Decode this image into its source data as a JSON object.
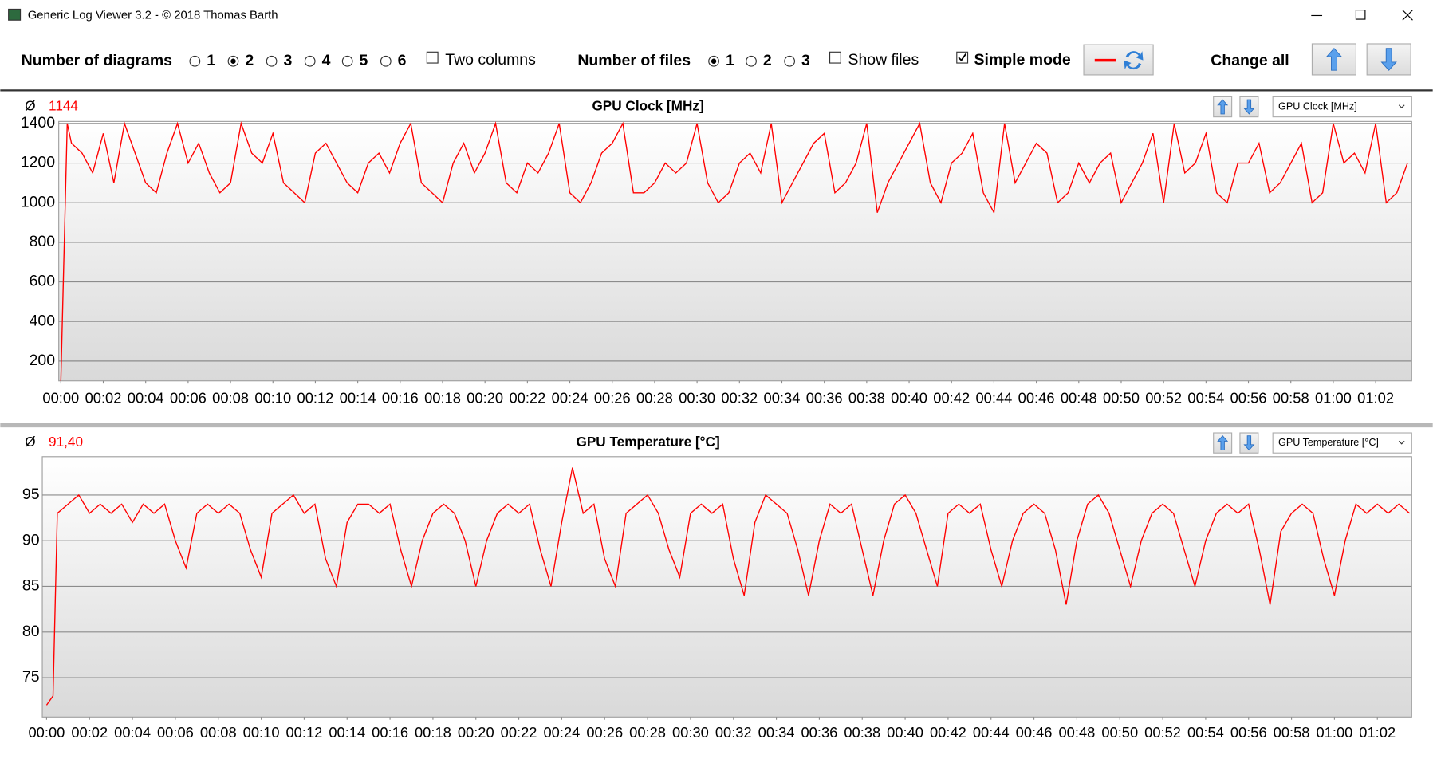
{
  "window": {
    "title": "Generic Log Viewer 3.2 - © 2018 Thomas Barth"
  },
  "toolbar": {
    "diagrams_label": "Number of diagrams",
    "diagram_options": [
      "1",
      "2",
      "3",
      "4",
      "5",
      "6"
    ],
    "diagrams_selected": 1,
    "two_columns": "Two columns",
    "two_columns_checked": false,
    "files_label": "Number of files",
    "file_options": [
      "1",
      "2",
      "3"
    ],
    "files_selected": 0,
    "show_files": "Show files",
    "show_files_checked": false,
    "simple_mode": "Simple mode",
    "simple_mode_checked": true,
    "change_all": "Change all"
  },
  "chart_data": [
    {
      "type": "line",
      "title": "GPU Clock [MHz]",
      "average_symbol": "Ø",
      "average": 1144,
      "grid": true,
      "x": [
        0,
        0.3,
        0.5,
        1,
        1.5,
        2,
        2.5,
        3,
        3.5,
        4,
        4.5,
        5,
        5.5,
        6,
        6.5,
        7,
        7.5,
        8,
        8.5,
        9,
        9.5,
        10,
        10.5,
        11,
        11.5,
        12,
        12.5,
        13,
        13.5,
        14,
        14.5,
        15,
        15.5,
        16,
        16.5,
        17,
        17.5,
        18,
        18.5,
        19,
        19.5,
        20,
        20.5,
        21,
        21.5,
        22,
        22.5,
        23,
        23.5,
        24,
        24.5,
        25,
        25.5,
        26,
        26.5,
        27,
        27.5,
        28,
        28.5,
        29,
        29.5,
        30,
        30.5,
        31,
        31.5,
        32,
        32.5,
        33,
        33.5,
        34,
        34.5,
        35,
        35.5,
        36,
        36.5,
        37,
        37.5,
        38,
        38.5,
        39,
        39.5,
        40,
        40.5,
        41,
        41.5,
        42,
        42.5,
        43,
        43.5,
        44,
        44.5,
        45,
        45.5,
        46,
        46.5,
        47,
        47.5,
        48,
        48.5,
        49,
        49.5,
        50,
        50.5,
        51,
        51.5,
        52,
        52.5,
        53,
        53.5,
        54,
        54.5,
        55,
        55.5,
        56,
        56.5,
        57,
        57.5,
        58,
        58.5,
        59,
        59.5,
        60,
        60.5,
        61,
        61.5,
        62,
        62.5,
        63,
        63.5
      ],
      "series": [
        {
          "name": "GPU Clock [MHz]",
          "color": "#ff0000",
          "values": [
            100,
            1400,
            1300,
            1250,
            1150,
            1350,
            1100,
            1400,
            1250,
            1100,
            1050,
            1250,
            1400,
            1200,
            1300,
            1150,
            1050,
            1100,
            1400,
            1250,
            1200,
            1350,
            1100,
            1050,
            1000,
            1250,
            1300,
            1200,
            1100,
            1050,
            1200,
            1250,
            1150,
            1300,
            1400,
            1100,
            1050,
            1000,
            1200,
            1300,
            1150,
            1250,
            1400,
            1100,
            1050,
            1200,
            1150,
            1250,
            1400,
            1050,
            1000,
            1100,
            1250,
            1300,
            1400,
            1050,
            1050,
            1100,
            1200,
            1150,
            1200,
            1400,
            1100,
            1000,
            1050,
            1200,
            1250,
            1150,
            1400,
            1000,
            1100,
            1200,
            1300,
            1350,
            1050,
            1100,
            1200,
            1400,
            950,
            1100,
            1200,
            1300,
            1400,
            1100,
            1000,
            1200,
            1250,
            1350,
            1050,
            950,
            1400,
            1100,
            1200,
            1300,
            1250,
            1000,
            1050,
            1200,
            1100,
            1200,
            1250,
            1000,
            1100,
            1200,
            1350,
            1000,
            1400,
            1150,
            1200,
            1350,
            1050,
            1000,
            1200,
            1200,
            1300,
            1050,
            1100,
            1200,
            1300,
            1000,
            1050,
            1400,
            1200,
            1250,
            1150,
            1400,
            1000,
            1050,
            1200
          ]
        }
      ],
      "xlim": [
        -0.1,
        63.7
      ],
      "ylim": [
        100,
        1410
      ],
      "yticks": [
        200,
        400,
        600,
        800,
        1000,
        1200,
        1400
      ],
      "xticks": [
        {
          "value": 0,
          "label": "00:00"
        },
        {
          "value": 2,
          "label": "00:02"
        },
        {
          "value": 4,
          "label": "00:04"
        },
        {
          "value": 6,
          "label": "00:06"
        },
        {
          "value": 8,
          "label": "00:08"
        },
        {
          "value": 10,
          "label": "00:10"
        },
        {
          "value": 12,
          "label": "00:12"
        },
        {
          "value": 14,
          "label": "00:14"
        },
        {
          "value": 16,
          "label": "00:16"
        },
        {
          "value": 18,
          "label": "00:18"
        },
        {
          "value": 20,
          "label": "00:20"
        },
        {
          "value": 22,
          "label": "00:22"
        },
        {
          "value": 24,
          "label": "00:24"
        },
        {
          "value": 26,
          "label": "00:26"
        },
        {
          "value": 28,
          "label": "00:28"
        },
        {
          "value": 30,
          "label": "00:30"
        },
        {
          "value": 32,
          "label": "00:32"
        },
        {
          "value": 34,
          "label": "00:34"
        },
        {
          "value": 36,
          "label": "00:36"
        },
        {
          "value": 38,
          "label": "00:38"
        },
        {
          "value": 40,
          "label": "00:40"
        },
        {
          "value": 42,
          "label": "00:42"
        },
        {
          "value": 44,
          "label": "00:44"
        },
        {
          "value": 46,
          "label": "00:46"
        },
        {
          "value": 48,
          "label": "00:48"
        },
        {
          "value": 50,
          "label": "00:50"
        },
        {
          "value": 52,
          "label": "00:52"
        },
        {
          "value": 54,
          "label": "00:54"
        },
        {
          "value": 56,
          "label": "00:56"
        },
        {
          "value": 58,
          "label": "00:58"
        },
        {
          "value": 60,
          "label": "01:00"
        },
        {
          "value": 62,
          "label": "01:02"
        }
      ]
    },
    {
      "type": "line",
      "title": "GPU Temperature [°C]",
      "average_symbol": "Ø",
      "average": {
        "value": 91.4,
        "label": "91,40"
      },
      "grid": true,
      "x": [
        0,
        0.3,
        0.5,
        1,
        1.5,
        2,
        2.5,
        3,
        3.5,
        4,
        4.5,
        5,
        5.5,
        6,
        6.5,
        7,
        7.5,
        8,
        8.5,
        9,
        9.5,
        10,
        10.5,
        11,
        11.5,
        12,
        12.5,
        13,
        13.5,
        14,
        14.5,
        15,
        15.5,
        16,
        16.5,
        17,
        17.5,
        18,
        18.5,
        19,
        19.5,
        20,
        20.5,
        21,
        21.5,
        22,
        22.5,
        23,
        23.5,
        24,
        24.5,
        25,
        25.5,
        26,
        26.5,
        27,
        27.5,
        28,
        28.5,
        29,
        29.5,
        30,
        30.5,
        31,
        31.5,
        32,
        32.5,
        33,
        33.5,
        34,
        34.5,
        35,
        35.5,
        36,
        36.5,
        37,
        37.5,
        38,
        38.5,
        39,
        39.5,
        40,
        40.5,
        41,
        41.5,
        42,
        42.5,
        43,
        43.5,
        44,
        44.5,
        45,
        45.5,
        46,
        46.5,
        47,
        47.5,
        48,
        48.5,
        49,
        49.5,
        50,
        50.5,
        51,
        51.5,
        52,
        52.5,
        53,
        53.5,
        54,
        54.5,
        55,
        55.5,
        56,
        56.5,
        57,
        57.5,
        58,
        58.5,
        59,
        59.5,
        60,
        60.5,
        61,
        61.5,
        62,
        62.5,
        63,
        63.5
      ],
      "series": [
        {
          "name": "GPU Temperature [°C]",
          "color": "#ff0000",
          "values": [
            72,
            73,
            93,
            94,
            95,
            93,
            94,
            93,
            94,
            92,
            94,
            93,
            94,
            90,
            87,
            93,
            94,
            93,
            94,
            93,
            89,
            86,
            93,
            94,
            95,
            93,
            94,
            88,
            85,
            92,
            94,
            94,
            93,
            94,
            89,
            85,
            90,
            93,
            94,
            93,
            90,
            85,
            90,
            93,
            94,
            93,
            94,
            89,
            85,
            92,
            98,
            93,
            94,
            88,
            85,
            93,
            94,
            95,
            93,
            89,
            86,
            93,
            94,
            93,
            94,
            88,
            84,
            92,
            95,
            94,
            93,
            89,
            84,
            90,
            94,
            93,
            94,
            89,
            84,
            90,
            94,
            95,
            93,
            89,
            85,
            93,
            94,
            93,
            94,
            89,
            85,
            90,
            93,
            94,
            93,
            89,
            83,
            90,
            94,
            95,
            93,
            89,
            85,
            90,
            93,
            94,
            93,
            89,
            85,
            90,
            93,
            94,
            93,
            94,
            89,
            83,
            91,
            93,
            94,
            93,
            88,
            84,
            90,
            94,
            93,
            94,
            93,
            94,
            93
          ]
        }
      ],
      "xlim": [
        -0.2,
        63.6
      ],
      "ylim": [
        70.7,
        99.2
      ],
      "yticks": [
        75,
        80,
        85,
        90,
        95
      ],
      "xticks": [
        {
          "value": 0,
          "label": "00:00"
        },
        {
          "value": 2,
          "label": "00:02"
        },
        {
          "value": 4,
          "label": "00:04"
        },
        {
          "value": 6,
          "label": "00:06"
        },
        {
          "value": 8,
          "label": "00:08"
        },
        {
          "value": 10,
          "label": "00:10"
        },
        {
          "value": 12,
          "label": "00:12"
        },
        {
          "value": 14,
          "label": "00:14"
        },
        {
          "value": 16,
          "label": "00:16"
        },
        {
          "value": 18,
          "label": "00:18"
        },
        {
          "value": 20,
          "label": "00:20"
        },
        {
          "value": 22,
          "label": "00:22"
        },
        {
          "value": 24,
          "label": "00:24"
        },
        {
          "value": 26,
          "label": "00:26"
        },
        {
          "value": 28,
          "label": "00:28"
        },
        {
          "value": 30,
          "label": "00:30"
        },
        {
          "value": 32,
          "label": "00:32"
        },
        {
          "value": 34,
          "label": "00:34"
        },
        {
          "value": 36,
          "label": "00:36"
        },
        {
          "value": 38,
          "label": "00:38"
        },
        {
          "value": 40,
          "label": "00:40"
        },
        {
          "value": 42,
          "label": "00:42"
        },
        {
          "value": 44,
          "label": "00:44"
        },
        {
          "value": 46,
          "label": "00:46"
        },
        {
          "value": 48,
          "label": "00:48"
        },
        {
          "value": 50,
          "label": "00:50"
        },
        {
          "value": 52,
          "label": "00:52"
        },
        {
          "value": 54,
          "label": "00:54"
        },
        {
          "value": 56,
          "label": "00:56"
        },
        {
          "value": 58,
          "label": "00:58"
        },
        {
          "value": 60,
          "label": "01:00"
        },
        {
          "value": 62,
          "label": "01:02"
        }
      ]
    }
  ]
}
